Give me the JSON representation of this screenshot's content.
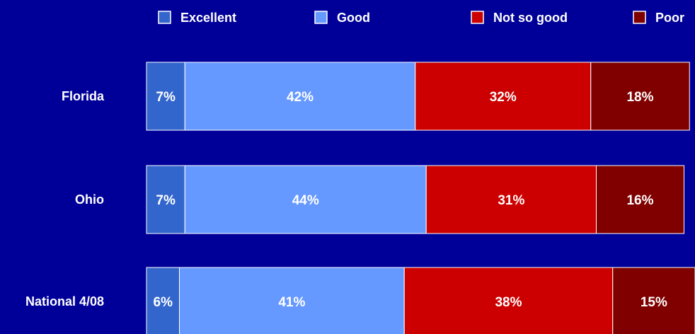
{
  "chart_data": {
    "type": "bar",
    "orientation": "horizontal",
    "stacked": true,
    "title": "",
    "xlabel": "",
    "ylabel": "",
    "xlim": [
      0,
      100
    ],
    "grid": false,
    "legend_position": "top",
    "categories": [
      "Florida",
      "Ohio",
      "National 4/08"
    ],
    "series": [
      {
        "name": "Excellent",
        "color": "#3366cc",
        "values": [
          7,
          7,
          6
        ],
        "labels": [
          "7%",
          "7%",
          "6%"
        ]
      },
      {
        "name": "Good",
        "color": "#6699ff",
        "values": [
          42,
          44,
          41
        ],
        "labels": [
          "42%",
          "44%",
          "41%"
        ]
      },
      {
        "name": "Not so good",
        "color": "#cc0000",
        "values": [
          32,
          31,
          38
        ],
        "labels": [
          "32%",
          "31%",
          "38%"
        ]
      },
      {
        "name": "Poor",
        "color": "#800000",
        "values": [
          18,
          16,
          15
        ],
        "labels": [
          "18%",
          "16%",
          "15%"
        ]
      }
    ]
  }
}
